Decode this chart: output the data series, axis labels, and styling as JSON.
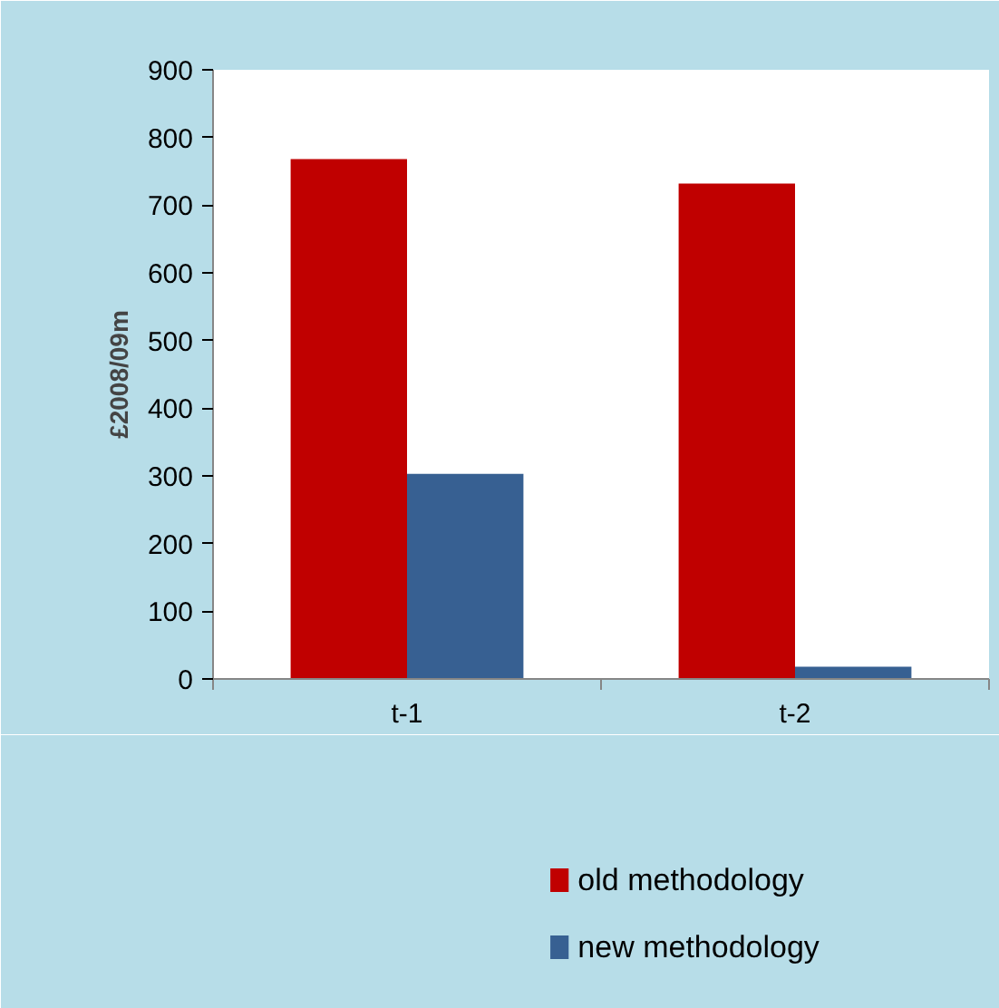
{
  "chart_data": {
    "type": "bar",
    "ylabel": "£2008/09m",
    "categories": [
      "t-1",
      "t-2"
    ],
    "series": [
      {
        "name": "old methodology",
        "color": "#c00000",
        "values": [
          768,
          732
        ]
      },
      {
        "name": "new methodology",
        "color": "#376092",
        "values": [
          303,
          18
        ]
      }
    ],
    "ylim": [
      0,
      900
    ],
    "yticks": [
      0,
      100,
      200,
      300,
      400,
      500,
      600,
      700,
      800,
      900
    ],
    "grid": false,
    "legend": "bottom"
  }
}
